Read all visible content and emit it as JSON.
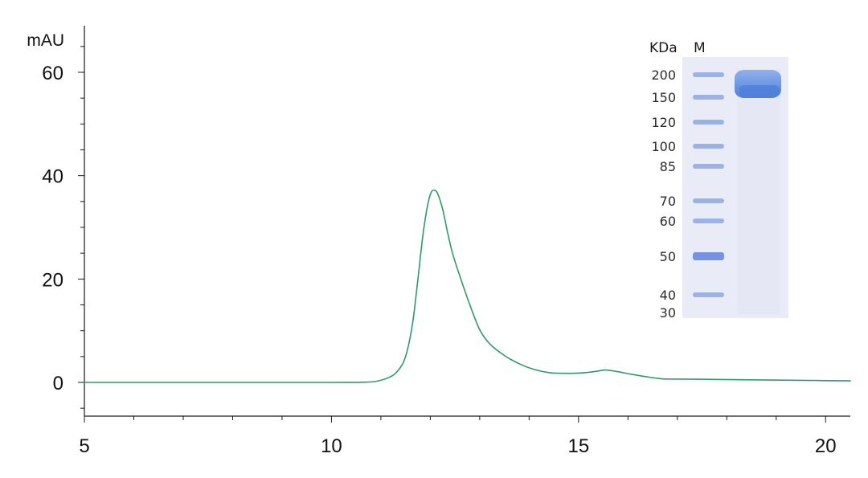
{
  "chart_data": {
    "type": "line",
    "title": "",
    "xlabel": "",
    "ylabel": "mAU",
    "xlim": [
      5,
      20.5
    ],
    "ylim": [
      -6.5,
      68
    ],
    "x_ticks": [
      5,
      10,
      15,
      20
    ],
    "y_ticks": [
      0,
      20,
      40,
      60
    ],
    "grid": false,
    "line_color": "#2e9a6b",
    "series": [
      {
        "x": [
          5.0,
          8.0,
          10.0,
          10.7,
          10.95,
          11.15,
          11.3,
          11.45,
          11.55,
          11.65,
          11.75,
          11.85,
          11.95,
          12.02,
          12.08,
          12.15,
          12.25,
          12.35,
          12.45,
          12.6,
          12.8,
          13.0,
          13.2,
          13.5,
          13.8,
          14.1,
          14.4,
          14.7,
          15.0,
          15.2,
          15.4,
          15.55,
          15.75,
          16.0,
          16.3,
          16.6,
          16.8,
          17.5,
          18.5,
          19.5,
          20.5
        ],
        "y": [
          0,
          0,
          0,
          0.05,
          0.3,
          0.9,
          1.8,
          3.8,
          6.8,
          12.0,
          20.0,
          28.5,
          34.5,
          36.8,
          37.2,
          36.5,
          33.5,
          29.0,
          25.0,
          20.5,
          15.0,
          10.2,
          7.5,
          5.2,
          3.6,
          2.5,
          1.9,
          1.75,
          1.8,
          1.95,
          2.2,
          2.4,
          2.15,
          1.7,
          1.2,
          0.8,
          0.65,
          0.6,
          0.5,
          0.4,
          0.3
        ]
      }
    ]
  },
  "gel": {
    "header_kda": "KDa",
    "header_marker": "M",
    "markers": [
      {
        "kda": "200",
        "value": 200
      },
      {
        "kda": "150",
        "value": 150
      },
      {
        "kda": "120",
        "value": 120
      },
      {
        "kda": "100",
        "value": 100
      },
      {
        "kda": "85",
        "value": 85
      },
      {
        "kda": "70",
        "value": 70
      },
      {
        "kda": "60",
        "value": 60
      },
      {
        "kda": "50",
        "value": 50
      },
      {
        "kda": "40",
        "value": 40
      },
      {
        "kda": "30",
        "value": 30
      }
    ],
    "background_color": "#e9ebf6",
    "band_color": "#7f9fde",
    "sample_band_color": "#5f8ce0"
  }
}
